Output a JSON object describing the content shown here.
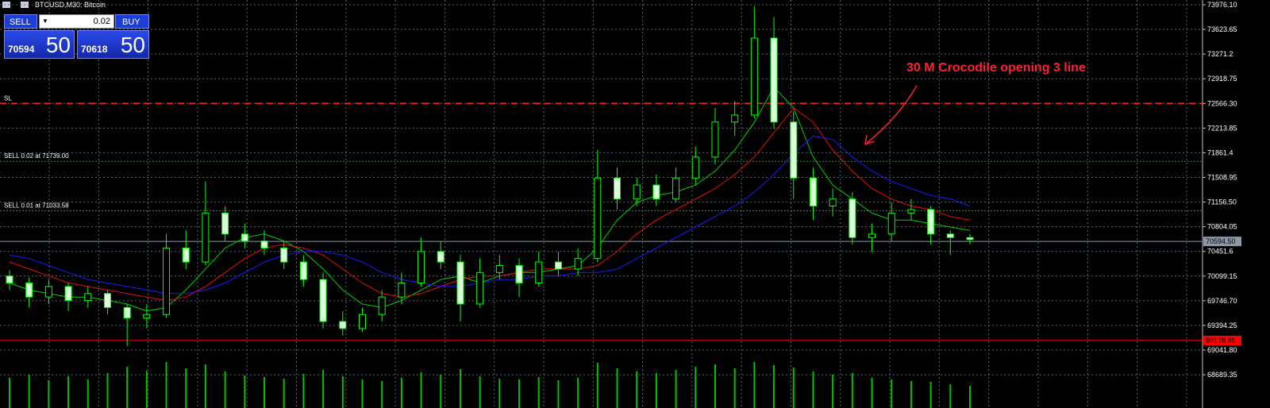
{
  "window": {
    "title": "BTCUSD,M30: Bitcoin"
  },
  "trade_panel": {
    "sell": "SELL",
    "buy": "BUY",
    "lot": "0.02",
    "bid_main": "70594",
    "bid_pips": "50",
    "ask_main": "70618",
    "ask_pips": "50"
  },
  "chart_data": {
    "type": "candlestick",
    "annotation": "30 M Crocodile opening 3 line",
    "ylim": [
      68214,
      74044
    ],
    "yticks": [
      {
        "value": 73976.1,
        "label": "73976.10"
      },
      73623.65,
      73271.2,
      72918.75,
      {
        "value": 72566.3,
        "label": "72566.30"
      },
      72213.85,
      71861.4,
      71508.95,
      {
        "value": 71156.5,
        "label": "71156.50"
      },
      70804.05,
      70451.6,
      70099.15,
      {
        "value": 69746.7,
        "label": "69746.70"
      },
      69394.25,
      {
        "value": 69041.8,
        "label": "69041.80"
      },
      68689.35
    ],
    "grid": true,
    "candle_color": "#00ff00",
    "candles": [
      [
        70100,
        70180,
        69900,
        70000
      ],
      [
        70000,
        70080,
        69650,
        69800
      ],
      [
        69800,
        70050,
        69700,
        69950
      ],
      [
        69950,
        70000,
        69600,
        69750
      ],
      [
        69750,
        69950,
        69650,
        69850
      ],
      [
        69850,
        69900,
        69550,
        69650
      ],
      [
        69650,
        69700,
        69100,
        69500
      ],
      [
        69500,
        69700,
        69350,
        69550
      ],
      [
        69550,
        70700,
        69500,
        70500
      ],
      [
        70500,
        70750,
        70200,
        70300
      ],
      [
        70300,
        71450,
        70250,
        71000
      ],
      [
        71000,
        71100,
        70600,
        70700
      ],
      [
        70700,
        70850,
        70500,
        70600
      ],
      [
        70600,
        70750,
        70400,
        70500
      ],
      [
        70500,
        70600,
        70200,
        70300
      ],
      [
        70300,
        70400,
        69950,
        70050
      ],
      [
        70050,
        70150,
        69350,
        69450
      ],
      [
        69450,
        69600,
        69250,
        69350
      ],
      [
        69350,
        69650,
        69300,
        69550
      ],
      [
        69550,
        69900,
        69450,
        69800
      ],
      [
        69800,
        70150,
        69700,
        70000
      ],
      [
        70000,
        70650,
        69950,
        70450
      ],
      [
        70450,
        70600,
        70200,
        70300
      ],
      [
        70300,
        70400,
        69450,
        69700
      ],
      [
        69700,
        70350,
        69650,
        70150
      ],
      [
        70150,
        70400,
        70050,
        70250
      ],
      [
        70250,
        70350,
        69800,
        70000
      ],
      [
        70000,
        70450,
        69950,
        70300
      ],
      [
        70300,
        70450,
        70100,
        70200
      ],
      [
        70200,
        70500,
        70100,
        70350
      ],
      [
        70350,
        71900,
        70300,
        71500
      ],
      [
        71500,
        71650,
        71050,
        71200
      ],
      [
        71200,
        71500,
        71100,
        71400
      ],
      [
        71400,
        71550,
        71100,
        71200
      ],
      [
        71200,
        71650,
        71150,
        71500
      ],
      [
        71500,
        71950,
        71400,
        71800
      ],
      [
        71800,
        72500,
        71700,
        72300
      ],
      [
        72300,
        72600,
        72100,
        72400
      ],
      [
        72400,
        73950,
        72350,
        73500
      ],
      [
        73500,
        73800,
        72200,
        72300
      ],
      [
        72300,
        72450,
        71200,
        71500
      ],
      [
        71500,
        71650,
        70900,
        71100
      ],
      [
        71100,
        71350,
        70950,
        71200
      ],
      [
        71200,
        71300,
        70550,
        70650
      ],
      [
        70650,
        70850,
        70450,
        70700
      ],
      [
        70700,
        71150,
        70600,
        71000
      ],
      [
        71000,
        71200,
        70900,
        71050
      ],
      [
        71050,
        71100,
        70550,
        70700
      ],
      [
        70700,
        70750,
        70400,
        70650
      ],
      [
        70650,
        70700,
        70550,
        70620
      ]
    ],
    "series": [
      {
        "color": "#00d000",
        "values": [
          70000,
          69900,
          69850,
          69800,
          69800,
          69750,
          69700,
          69600,
          69650,
          69900,
          70200,
          70500,
          70650,
          70700,
          70600,
          70450,
          70200,
          69900,
          69700,
          69650,
          69750,
          69900,
          70050,
          70100,
          70000,
          70100,
          70150,
          70150,
          70200,
          70250,
          70500,
          70900,
          71150,
          71250,
          71300,
          71400,
          71600,
          71900,
          72300,
          72800,
          72500,
          71800,
          71400,
          71200,
          71000,
          70900,
          70900,
          70850,
          70800,
          70750
        ]
      },
      {
        "color": "#e01010",
        "values": [
          70300,
          70200,
          70100,
          70000,
          69950,
          69900,
          69850,
          69800,
          69750,
          69800,
          69950,
          70150,
          70350,
          70500,
          70550,
          70500,
          70400,
          70200,
          70000,
          69850,
          69800,
          69850,
          69950,
          70050,
          70100,
          70100,
          70150,
          70200,
          70200,
          70200,
          70250,
          70450,
          70700,
          70900,
          71050,
          71200,
          71350,
          71550,
          71800,
          72150,
          72500,
          72300,
          71900,
          71600,
          71350,
          71200,
          71100,
          71050,
          70950,
          70900
        ]
      },
      {
        "color": "#1a1aff",
        "values": [
          70400,
          70350,
          70250,
          70150,
          70050,
          70000,
          69950,
          69900,
          69850,
          69850,
          69900,
          70000,
          70150,
          70300,
          70400,
          70450,
          70450,
          70400,
          70300,
          70150,
          70050,
          70000,
          69950,
          69950,
          70000,
          70050,
          70050,
          70100,
          70100,
          70150,
          70150,
          70200,
          70350,
          70500,
          70650,
          70800,
          70950,
          71100,
          71300,
          71550,
          71850,
          72100,
          72050,
          71800,
          71600,
          71450,
          71350,
          71250,
          71200,
          71100
        ]
      }
    ],
    "volume_color": "#00c000",
    "volume": [
      38,
      42,
      35,
      40,
      36,
      44,
      52,
      47,
      58,
      50,
      55,
      46,
      41,
      39,
      37,
      43,
      48,
      40,
      36,
      34,
      38,
      45,
      42,
      49,
      40,
      37,
      36,
      39,
      35,
      38,
      57,
      50,
      46,
      44,
      48,
      52,
      55,
      50,
      58,
      54,
      51,
      46,
      42,
      44,
      38,
      36,
      34,
      33,
      30,
      28
    ],
    "levels": [
      {
        "label": "SL",
        "value": 72566.3,
        "color": "#ff2020",
        "style": "dashed"
      },
      {
        "label": "SELL 0.02 at 71739.00",
        "value": 71739,
        "color": "#00b000",
        "style": "dotted"
      },
      {
        "label": "SELL 0.01 at 71033.58",
        "value": 71033.58,
        "color": "#00b000",
        "style": "dotted"
      }
    ],
    "price_tags": [
      {
        "value": 70594.5,
        "label": "70594.50",
        "color": "#8a9aa8",
        "text_color": "#000"
      },
      {
        "value": 69178.89,
        "label": "69178.89",
        "color": "#ff0000",
        "text_color": "#000"
      }
    ]
  }
}
